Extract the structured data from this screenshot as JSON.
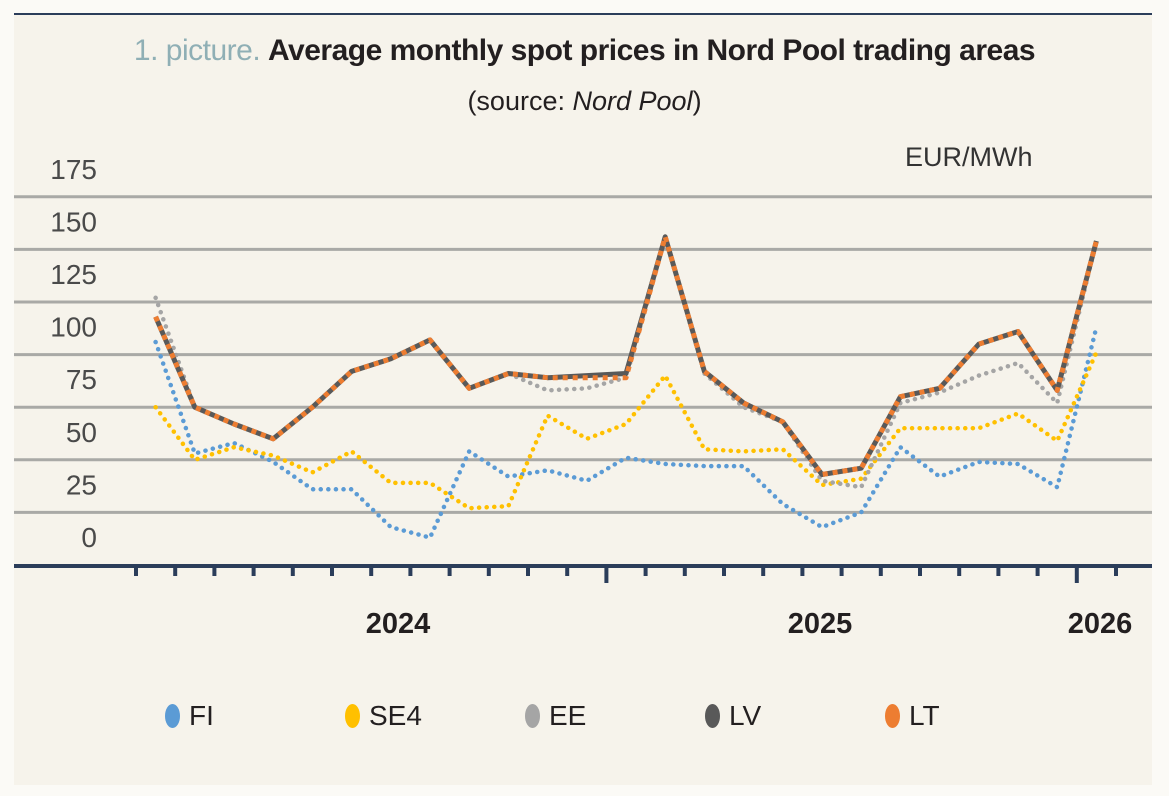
{
  "figure": {
    "number_label": "1. picture.",
    "title": "Average monthly spot prices in Nord Pool trading areas",
    "subtitle_prefix": "(source: ",
    "subtitle_source": "Nord Pool",
    "subtitle_suffix": ")",
    "unit": "EUR/MWh"
  },
  "chart_data": {
    "type": "line",
    "title": "Average monthly spot prices in Nord Pool trading areas",
    "subtitle": "(source: Nord Pool)",
    "xlabel": "",
    "ylabel": "EUR/MWh",
    "ylim": [
      0,
      175
    ],
    "yticks": [
      0,
      25,
      50,
      75,
      100,
      125,
      150,
      175
    ],
    "grid": true,
    "legend_position": "bottom",
    "x": [
      "2024-01",
      "2024-02",
      "2024-03",
      "2024-04",
      "2024-05",
      "2024-06",
      "2024-07",
      "2024-08",
      "2024-09",
      "2024-10",
      "2024-11",
      "2024-12",
      "2025-01",
      "2025-02",
      "2025-03",
      "2025-04",
      "2025-05",
      "2025-06",
      "2025-07",
      "2025-08",
      "2025-09",
      "2025-10",
      "2025-11",
      "2025-12",
      "2026-01"
    ],
    "year_labels": [
      "2024",
      "2025",
      "2026"
    ],
    "series": [
      {
        "name": "FI",
        "color": "#5B9BD5",
        "style": "dotted",
        "values": [
          106,
          53,
          58,
          49,
          36,
          36,
          18,
          13,
          54,
          42,
          45,
          40,
          51,
          48,
          47,
          47,
          29,
          18,
          25,
          56,
          42,
          49,
          48,
          37,
          113
        ]
      },
      {
        "name": "SE4",
        "color": "#FFC000",
        "style": "dotted",
        "values": [
          75,
          50,
          56,
          52,
          44,
          54,
          39,
          39,
          27,
          28,
          71,
          60,
          67,
          90,
          55,
          54,
          55,
          38,
          41,
          65,
          65,
          65,
          72,
          59,
          101
        ]
      },
      {
        "name": "EE",
        "color": "#A5A5A5",
        "style": "dotted",
        "values": [
          127,
          75,
          67,
          60,
          75,
          92,
          98,
          107,
          84,
          91,
          83,
          84,
          89,
          156,
          91,
          75,
          68,
          40,
          37,
          77,
          82,
          90,
          96,
          77,
          154
        ]
      },
      {
        "name": "LV",
        "color": "#595959",
        "style": "solid",
        "values": [
          118,
          75,
          67,
          60,
          75,
          92,
          98,
          107,
          84,
          91,
          89,
          90,
          91,
          156,
          92,
          77,
          68,
          43,
          46,
          80,
          84,
          105,
          111,
          83,
          154
        ]
      },
      {
        "name": "LT",
        "color": "#ED7D31",
        "style": "dashed",
        "values": [
          118,
          75,
          67,
          60,
          75,
          92,
          98,
          107,
          84,
          91,
          89,
          89,
          89,
          156,
          92,
          77,
          68,
          43,
          46,
          80,
          84,
          105,
          111,
          83,
          154
        ]
      }
    ]
  }
}
